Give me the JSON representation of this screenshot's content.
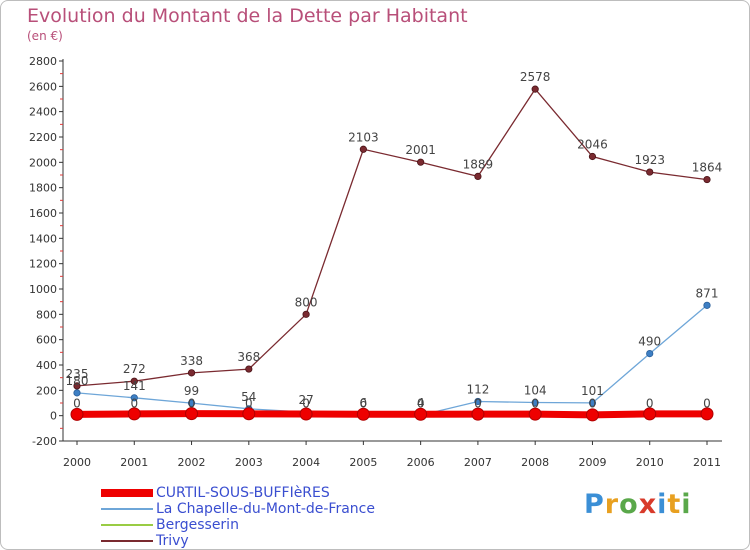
{
  "header": {
    "title": "Evolution du Montant de la Dette par Habitant",
    "unit": "(en €)"
  },
  "logo": {
    "text": "Proxiti",
    "colors": [
      "#3b8fd6",
      "#e8a020",
      "#5aa84a",
      "#d83a2a",
      "#3b8fd6",
      "#e8a020",
      "#5aa84a"
    ]
  },
  "chart_data": {
    "type": "line",
    "title": "Evolution du Montant de la Dette par Habitant",
    "ylabel": "(en €)",
    "xlabel": "",
    "ylim": [
      -200,
      2800
    ],
    "yticks": [
      -200,
      0,
      200,
      400,
      600,
      800,
      1000,
      1200,
      1400,
      1600,
      1800,
      2000,
      2200,
      2400,
      2600,
      2800
    ],
    "grid": false,
    "legend_position": "bottom-left",
    "x": [
      "2000",
      "2001",
      "2002",
      "2003",
      "2004",
      "2005",
      "2006",
      "2007",
      "2008",
      "2009",
      "2010",
      "2011"
    ],
    "series": [
      {
        "name": "CURTIL-SOUS-BUFFIèRES",
        "color": "#ee0000",
        "values": [
          10,
          14,
          16,
          15,
          13,
          11,
          11,
          12,
          12,
          6,
          14,
          14
        ],
        "labels": [
          "",
          "",
          "",
          "",
          "",
          "",
          "",
          "",
          "",
          "",
          "",
          ""
        ]
      },
      {
        "name": "La Chapelle-du-Mont-de-France",
        "color": "#6ea6d8",
        "values": [
          180,
          141,
          99,
          54,
          27,
          6,
          4,
          112,
          104,
          101,
          490,
          871
        ],
        "labels": [
          "180",
          "141",
          "99",
          "54",
          "27",
          "6",
          "4",
          "112",
          "104",
          "101",
          "490",
          "871"
        ]
      },
      {
        "name": "Bergesserin",
        "color": "#99cc44",
        "values": [
          0,
          0,
          0,
          0,
          0,
          0,
          0,
          0,
          0,
          0,
          0,
          0
        ],
        "labels": [
          "0",
          "0",
          "0",
          "0",
          "0",
          "0",
          "0",
          "0",
          "0",
          "0",
          "0",
          "0"
        ]
      },
      {
        "name": "Trivy",
        "color": "#7a2a30",
        "values": [
          235,
          272,
          338,
          368,
          800,
          2103,
          2001,
          1889,
          2578,
          2046,
          1923,
          1864
        ],
        "labels": [
          "235",
          "272",
          "338",
          "368",
          "800",
          "2103",
          "2001",
          "1889",
          "2578",
          "2046",
          "1923",
          "1864"
        ]
      }
    ]
  }
}
